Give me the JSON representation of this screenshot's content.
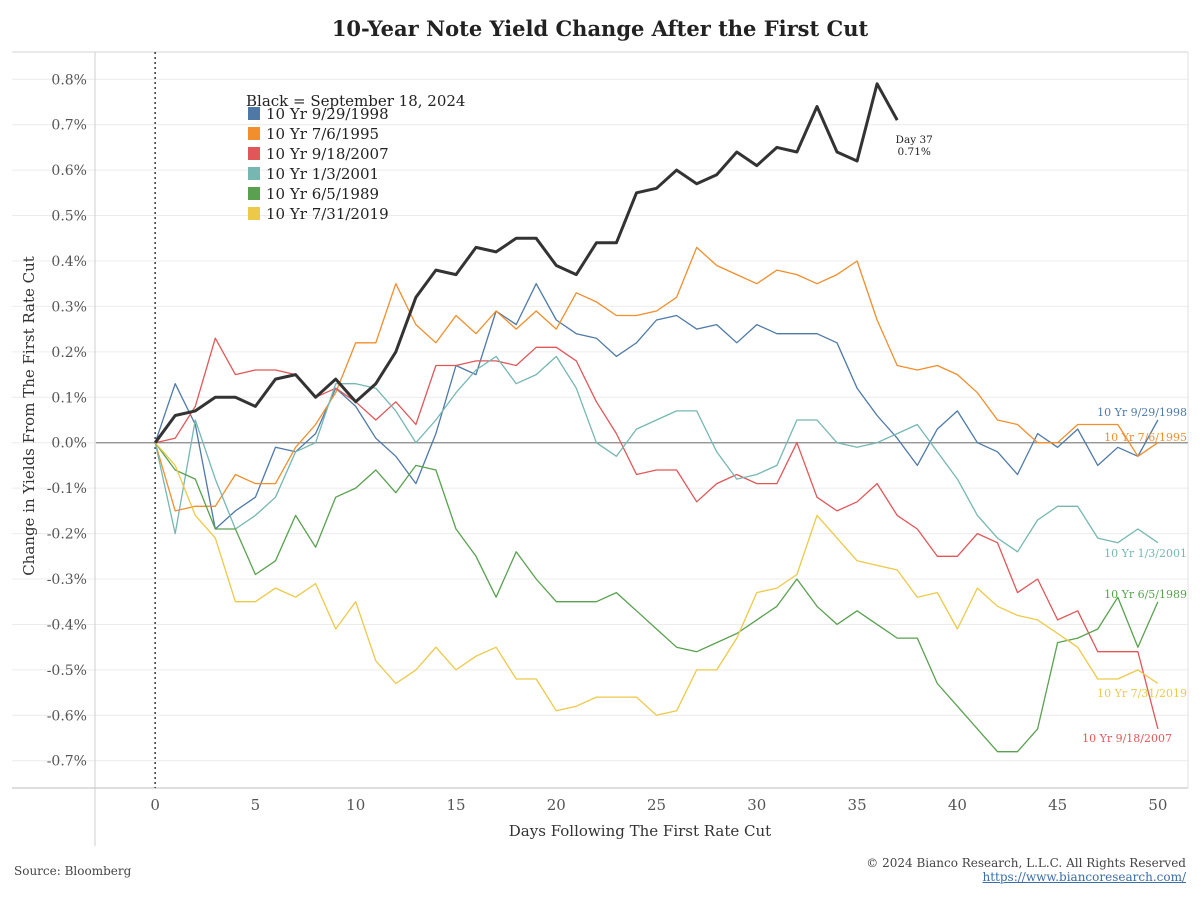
{
  "chart_data": {
    "type": "line",
    "title": "10-Year Note Yield Change After the First Cut",
    "xlabel": "Days Following The First Rate Cut",
    "ylabel": "Change in Yields From The First Rate Cut",
    "xlim": [
      -3,
      51.5
    ],
    "ylim": [
      -0.76,
      0.86
    ],
    "x_ticks": [
      0,
      5,
      10,
      15,
      20,
      25,
      30,
      35,
      40,
      45,
      50
    ],
    "x_tick_labels": [
      "0",
      "5",
      "10",
      "15",
      "20",
      "25",
      "30",
      "35",
      "40",
      "45",
      "50"
    ],
    "y_ticks": [
      0.8,
      0.7,
      0.6,
      0.5,
      0.4,
      0.3,
      0.2,
      0.1,
      0.0,
      -0.1,
      -0.2,
      -0.3,
      -0.4,
      -0.5,
      -0.6,
      -0.7
    ],
    "y_tick_labels": [
      "0.8%",
      "0.7%",
      "0.6%",
      "0.5%",
      "0.4%",
      "0.3%",
      "0.2%",
      "0.1%",
      "0.0%",
      "-0.1%",
      "-0.2%",
      "-0.3%",
      "-0.4%",
      "-0.5%",
      "-0.6%",
      "-0.7%"
    ],
    "grid": true,
    "legend_title": "Black = September 18, 2024",
    "legend_position": "top-left",
    "series": [
      {
        "name": "10 Yr  9/29/1998",
        "end_label": "10 Yr  9/29/1998",
        "color": "#4e79a7",
        "values": [
          0,
          0.13,
          0.04,
          -0.19,
          -0.15,
          -0.12,
          -0.01,
          -0.02,
          0.02,
          0.12,
          0.08,
          0.01,
          -0.03,
          -0.09,
          0.02,
          0.17,
          0.15,
          0.29,
          0.26,
          0.35,
          0.27,
          0.24,
          0.23,
          0.19,
          0.22,
          0.27,
          0.28,
          0.25,
          0.26,
          0.22,
          0.26,
          0.24,
          0.24,
          0.24,
          0.22,
          0.12,
          0.06,
          0.01,
          -0.05,
          0.03,
          0.07,
          0.0,
          -0.02,
          -0.07,
          0.02,
          -0.01,
          0.03,
          -0.05,
          -0.01,
          -0.03,
          0.05
        ]
      },
      {
        "name": "10 Yr  7/6/1995",
        "end_label": "10 Yr  7/6/1995",
        "color": "#f28e2b",
        "values": [
          0,
          -0.15,
          -0.14,
          -0.14,
          -0.07,
          -0.09,
          -0.09,
          -0.01,
          0.04,
          0.11,
          0.22,
          0.22,
          0.35,
          0.26,
          0.22,
          0.28,
          0.24,
          0.29,
          0.25,
          0.29,
          0.25,
          0.33,
          0.31,
          0.28,
          0.28,
          0.29,
          0.32,
          0.43,
          0.39,
          0.37,
          0.35,
          0.38,
          0.37,
          0.35,
          0.37,
          0.4,
          0.27,
          0.17,
          0.16,
          0.17,
          0.15,
          0.11,
          0.05,
          0.04,
          0.0,
          0.0,
          0.04,
          0.04,
          0.04,
          -0.03,
          0.0
        ]
      },
      {
        "name": "10 Yr  9/18/2007",
        "end_label": "10 Yr  9/18/2007",
        "color": "#e15759",
        "values": [
          0,
          0.01,
          0.08,
          0.23,
          0.15,
          0.16,
          0.16,
          0.15,
          0.1,
          0.12,
          0.09,
          0.05,
          0.09,
          0.04,
          0.17,
          0.17,
          0.18,
          0.18,
          0.17,
          0.21,
          0.21,
          0.18,
          0.09,
          0.02,
          -0.07,
          -0.06,
          -0.06,
          -0.13,
          -0.09,
          -0.07,
          -0.09,
          -0.09,
          0.0,
          -0.12,
          -0.15,
          -0.13,
          -0.09,
          -0.16,
          -0.19,
          -0.25,
          -0.25,
          -0.2,
          -0.22,
          -0.33,
          -0.3,
          -0.39,
          -0.37,
          -0.46,
          -0.46,
          -0.46,
          -0.63
        ]
      },
      {
        "name": "10 Yr  1/3/2001",
        "end_label": "10 Yr  1/3/2001",
        "color": "#76b7b2",
        "values": [
          0,
          -0.2,
          0.05,
          -0.08,
          -0.19,
          -0.16,
          -0.12,
          -0.02,
          0.0,
          0.13,
          0.13,
          0.12,
          0.07,
          0.0,
          0.05,
          0.11,
          0.16,
          0.19,
          0.13,
          0.15,
          0.19,
          0.12,
          0.0,
          -0.03,
          0.03,
          0.05,
          0.07,
          0.07,
          -0.02,
          -0.08,
          -0.07,
          -0.05,
          0.05,
          0.05,
          0.0,
          -0.01,
          0.0,
          0.02,
          0.04,
          -0.02,
          -0.08,
          -0.16,
          -0.21,
          -0.24,
          -0.17,
          -0.14,
          -0.14,
          -0.21,
          -0.22,
          -0.19,
          -0.22
        ]
      },
      {
        "name": "10 Yr  6/5/1989",
        "end_label": "10 Yr  6/5/1989",
        "color": "#59a14f",
        "values": [
          0,
          -0.06,
          -0.08,
          -0.19,
          -0.19,
          -0.29,
          -0.26,
          -0.16,
          -0.23,
          -0.12,
          -0.1,
          -0.06,
          -0.11,
          -0.05,
          -0.06,
          -0.19,
          -0.25,
          -0.34,
          -0.24,
          -0.3,
          -0.35,
          -0.35,
          -0.35,
          -0.33,
          -0.37,
          -0.41,
          -0.45,
          -0.46,
          -0.44,
          -0.42,
          -0.39,
          -0.36,
          -0.3,
          -0.36,
          -0.4,
          -0.37,
          -0.4,
          -0.43,
          -0.43,
          -0.53,
          -0.58,
          -0.63,
          -0.68,
          -0.68,
          -0.63,
          -0.44,
          -0.43,
          -0.41,
          -0.34,
          -0.45,
          -0.35
        ]
      },
      {
        "name": "10 Yr  7/31/2019",
        "end_label": "10 Yr  7/31/2019",
        "color": "#edc948",
        "values": [
          0,
          -0.05,
          -0.16,
          -0.21,
          -0.35,
          -0.35,
          -0.32,
          -0.34,
          -0.31,
          -0.41,
          -0.35,
          -0.48,
          -0.53,
          -0.5,
          -0.45,
          -0.5,
          -0.47,
          -0.45,
          -0.52,
          -0.52,
          -0.59,
          -0.58,
          -0.56,
          -0.56,
          -0.56,
          -0.6,
          -0.59,
          -0.5,
          -0.5,
          -0.43,
          -0.33,
          -0.32,
          -0.29,
          -0.16,
          -0.21,
          -0.26,
          -0.27,
          -0.28,
          -0.34,
          -0.33,
          -0.41,
          -0.32,
          -0.36,
          -0.38,
          -0.39,
          -0.42,
          -0.45,
          -0.52,
          -0.52,
          -0.5,
          -0.53
        ]
      },
      {
        "name": "Black = September 18, 2024",
        "color": "#333333",
        "values": [
          0,
          0.06,
          0.07,
          0.1,
          0.1,
          0.08,
          0.14,
          0.15,
          0.1,
          0.14,
          0.09,
          0.13,
          0.2,
          0.32,
          0.38,
          0.37,
          0.43,
          0.42,
          0.45,
          0.45,
          0.39,
          0.37,
          0.44,
          0.44,
          0.55,
          0.56,
          0.6,
          0.57,
          0.59,
          0.64,
          0.61,
          0.65,
          0.64,
          0.74,
          0.64,
          0.62,
          0.79,
          0.71
        ]
      }
    ],
    "annotations": [
      {
        "text_line1": "Day 37",
        "text_line2": "0.71%",
        "x": 37,
        "y": 0.71
      }
    ],
    "reference_lines": {
      "vertical_x": 0,
      "horizontal_y": 0
    }
  },
  "footer": {
    "source": "Source: Bloomberg",
    "copyright": "© 2024 Bianco Research, L.L.C. All Rights Reserved",
    "url": "https://www.biancoresearch.com/"
  }
}
